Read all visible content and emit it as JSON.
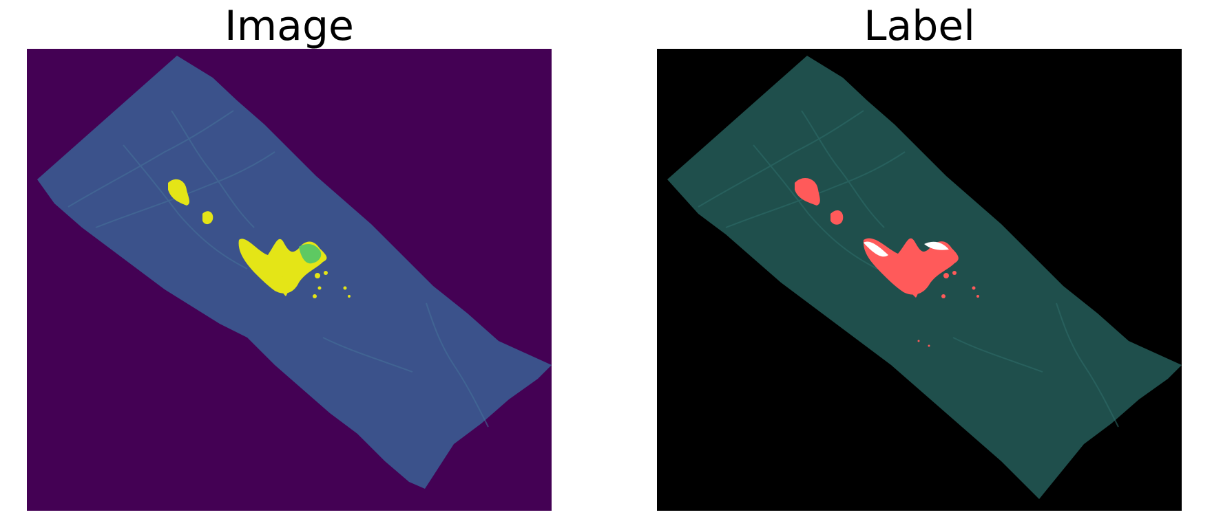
{
  "panels": [
    {
      "title": "Image",
      "background": "#440154",
      "terrain": "#3b528b",
      "terrain_light": "#46739a",
      "highlight": "#e4e517",
      "highlight_alt": "#5ec962"
    },
    {
      "title": "Label",
      "background": "#000000",
      "terrain": "#1f4f4c",
      "terrain_light": "#2f6f6b",
      "highlight": "#ff5a5a",
      "highlight_alt": "#ffffff"
    }
  ]
}
